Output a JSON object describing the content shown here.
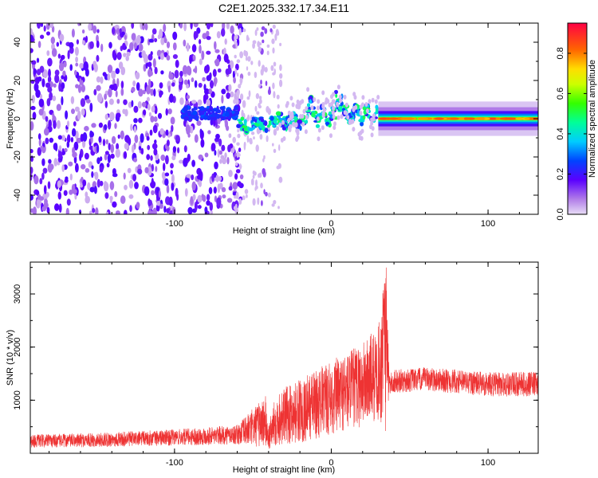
{
  "title": "C2E1.2025.332.17.34.E11",
  "chart_data": [
    {
      "type": "heatmap",
      "name": "spectrogram",
      "xlabel": "Height of straight line (km)",
      "ylabel": "Frequency (Hz)",
      "xlim": [
        -192,
        132
      ],
      "ylim": [
        -50,
        50
      ],
      "xticks": [
        -100,
        0,
        100
      ],
      "xtick_labels": [
        "-100",
        "0",
        "100"
      ],
      "yticks": [
        -40,
        -20,
        0,
        20,
        40
      ],
      "ytick_labels": [
        "-40",
        "-20",
        "0",
        "20",
        "40"
      ],
      "colorbar": {
        "label": "Normalized spectral amplitude",
        "range": [
          0,
          0.95
        ],
        "ticks": [
          0,
          0.2,
          0.4,
          0.6,
          0.8
        ],
        "tick_labels": [
          "0.0",
          "0.2",
          "0.4",
          "0.6",
          "0.8"
        ]
      },
      "regions": [
        {
          "description": "broadband noise",
          "x": [
            -192,
            -60
          ],
          "y": [
            -50,
            50
          ],
          "amplitude": 0.05
        },
        {
          "description": "fading noise",
          "x": [
            -60,
            -35
          ],
          "y": [
            -50,
            50
          ],
          "amplitude": 0.03
        },
        {
          "description": "signal track",
          "x": [
            -95,
            30
          ],
          "y_center": 2,
          "amplitude": 0.4
        },
        {
          "description": "steady carrier",
          "x": [
            30,
            132
          ],
          "y_center": 0,
          "amplitude": 0.85
        }
      ]
    },
    {
      "type": "line",
      "name": "snr",
      "xlabel": "Height of straight line (km)",
      "ylabel": "SNR (10 * v/v)",
      "xlim": [
        -192,
        132
      ],
      "ylim": [
        0,
        3600
      ],
      "xticks": [
        -100,
        0,
        100
      ],
      "xtick_labels": [
        "-100",
        "0",
        "100"
      ],
      "yticks": [
        1000,
        2000,
        3000
      ],
      "ytick_labels": [
        "1000",
        "2000",
        "3000"
      ],
      "color": "#ee3333",
      "envelope": {
        "x": [
          -192,
          -150,
          -100,
          -60,
          -42,
          -40,
          -35,
          -20,
          0,
          20,
          30,
          35,
          37,
          40,
          60,
          100,
          132
        ],
        "y_mid": [
          230,
          250,
          300,
          350,
          600,
          300,
          650,
          800,
          1050,
          1300,
          1500,
          1900,
          1300,
          1350,
          1400,
          1300,
          1300
        ],
        "y_amp": [
          120,
          130,
          150,
          180,
          500,
          250,
          500,
          600,
          700,
          800,
          900,
          1600,
          200,
          220,
          220,
          230,
          230
        ]
      }
    }
  ]
}
